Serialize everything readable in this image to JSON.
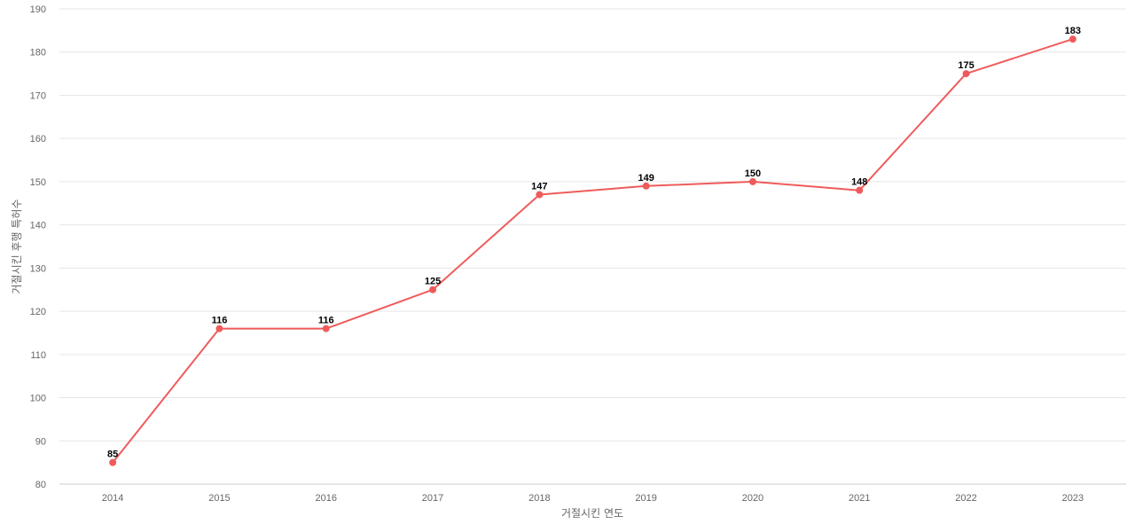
{
  "chart_data": {
    "type": "line",
    "title": "",
    "xlabel": "거절시킨 연도",
    "ylabel": "거절시킨 후행 특허수",
    "categories": [
      "2014",
      "2015",
      "2016",
      "2017",
      "2018",
      "2019",
      "2020",
      "2021",
      "2022",
      "2023"
    ],
    "series": [
      {
        "values": [
          85,
          116,
          116,
          125,
          147,
          149,
          150,
          148,
          175,
          183
        ],
        "color": "#ef5b5b"
      }
    ],
    "ylim": [
      80,
      190
    ],
    "yticks": [
      80,
      90,
      100,
      110,
      120,
      130,
      140,
      150,
      160,
      170,
      180,
      190
    ],
    "grid": true,
    "legend": "none",
    "data_labels": true
  }
}
